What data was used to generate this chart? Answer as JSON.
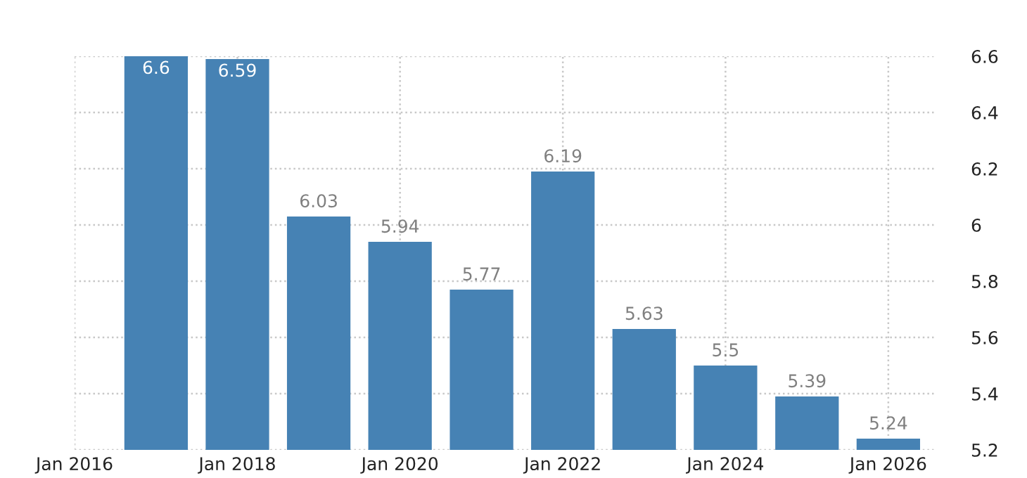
{
  "chart_data": {
    "type": "bar",
    "x": [
      "2017-01-01",
      "2018-01-01",
      "2019-01-01",
      "2020-01-01",
      "2021-01-01",
      "2022-01-01",
      "2023-01-01",
      "2024-01-01",
      "2025-01-01",
      "2026-01-01"
    ],
    "values": [
      6.6,
      6.59,
      6.03,
      5.94,
      5.77,
      6.19,
      5.63,
      5.5,
      5.39,
      5.24
    ],
    "color": "#4682b4",
    "data_labels": true,
    "xlim": [
      "2016-01-01",
      "2026-08-01"
    ],
    "xticks": [
      {
        "value": "2016-01-01",
        "label": "Jan 2016"
      },
      {
        "value": "2018-01-01",
        "label": "Jan 2018"
      },
      {
        "value": "2020-01-01",
        "label": "Jan 2020"
      },
      {
        "value": "2022-01-01",
        "label": "Jan 2022"
      },
      {
        "value": "2024-01-01",
        "label": "Jan 2024"
      },
      {
        "value": "2026-01-01",
        "label": "Jan 2026"
      }
    ],
    "ylim": [
      5.2,
      6.6
    ],
    "yticks": [
      5.2,
      5.4,
      5.6,
      5.8,
      6,
      6.2,
      6.4,
      6.6
    ],
    "grid": true
  }
}
